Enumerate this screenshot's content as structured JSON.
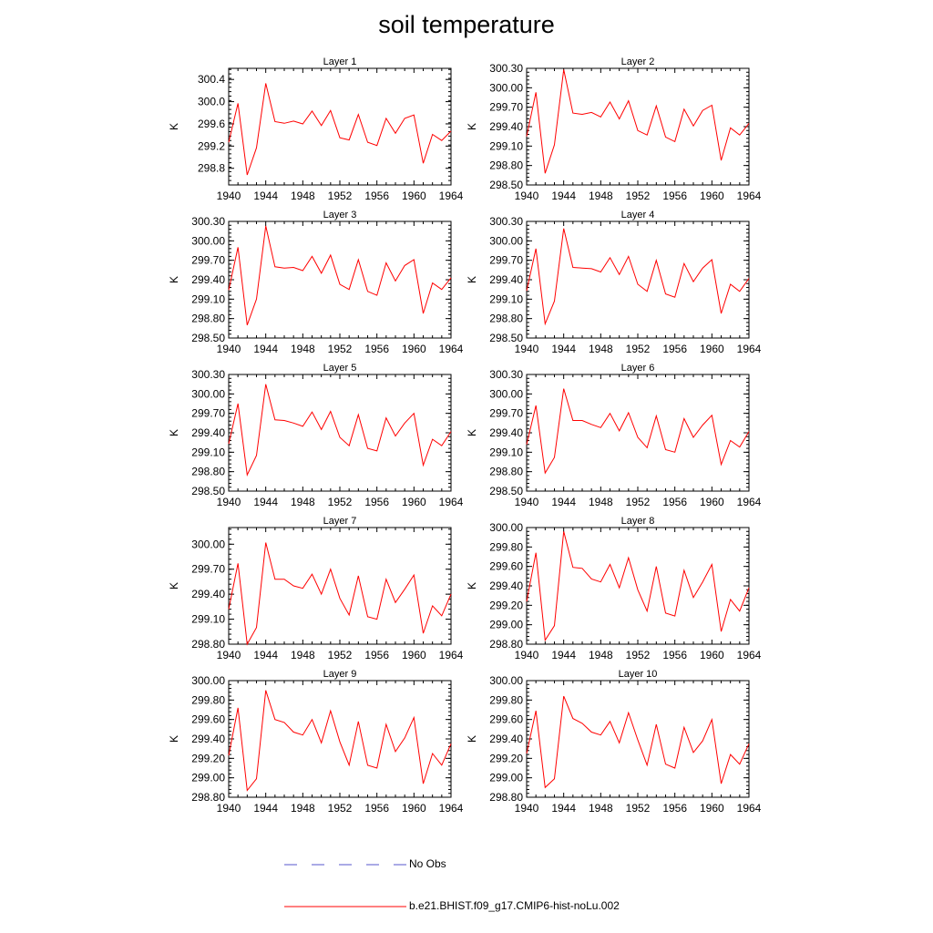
{
  "title": "soil temperature",
  "legend": {
    "obs_label": "No Obs",
    "obs_color": "#5555cc",
    "model_label": "b.e21.BHIST.f09_g17.CMIP6-hist-noLu.002",
    "model_color": "#ff0000"
  },
  "chart_data": [
    {
      "type": "line",
      "title": "Layer 1",
      "ylabel": "K",
      "xlim": [
        1940,
        1964
      ],
      "ylim": [
        298.5,
        300.6
      ],
      "xticks": [
        "1940",
        "1944",
        "1948",
        "1952",
        "1956",
        "1960",
        "1964"
      ],
      "yticks": [
        "298.8",
        "299.2",
        "299.6",
        "300.0",
        "300.4"
      ],
      "series": [
        {
          "values": [
            299.27,
            299.97,
            298.68,
            299.17,
            300.33,
            299.64,
            299.61,
            299.65,
            299.6,
            299.83,
            299.57,
            299.84,
            299.35,
            299.31,
            299.77,
            299.27,
            299.21,
            299.7,
            299.43,
            299.7,
            299.76,
            298.89,
            299.41,
            299.3,
            299.47
          ]
        }
      ]
    },
    {
      "type": "line",
      "title": "Layer 2",
      "ylabel": "K",
      "xlim": [
        1940,
        1964
      ],
      "ylim": [
        298.5,
        300.3
      ],
      "xticks": [
        "1940",
        "1944",
        "1948",
        "1952",
        "1956",
        "1960",
        "1964"
      ],
      "yticks": [
        "298.50",
        "298.80",
        "299.10",
        "299.40",
        "299.70",
        "300.00",
        "300.30"
      ],
      "series": [
        {
          "values": [
            299.25,
            299.93,
            298.68,
            299.12,
            300.28,
            299.61,
            299.59,
            299.62,
            299.55,
            299.78,
            299.52,
            299.8,
            299.34,
            299.27,
            299.72,
            299.24,
            299.17,
            299.67,
            299.41,
            299.65,
            299.73,
            298.88,
            299.38,
            299.27,
            299.45
          ]
        }
      ]
    },
    {
      "type": "line",
      "title": "Layer 3",
      "ylabel": "K",
      "xlim": [
        1940,
        1964
      ],
      "ylim": [
        298.5,
        300.3
      ],
      "xticks": [
        "1940",
        "1944",
        "1948",
        "1952",
        "1956",
        "1960",
        "1964"
      ],
      "yticks": [
        "298.50",
        "298.80",
        "299.10",
        "299.40",
        "299.70",
        "300.00",
        "300.30"
      ],
      "series": [
        {
          "values": [
            299.24,
            299.9,
            298.7,
            299.1,
            300.23,
            299.6,
            299.58,
            299.59,
            299.54,
            299.76,
            299.5,
            299.78,
            299.33,
            299.25,
            299.71,
            299.22,
            299.16,
            299.66,
            299.38,
            299.62,
            299.71,
            298.88,
            299.35,
            299.25,
            299.43
          ]
        }
      ]
    },
    {
      "type": "line",
      "title": "Layer 4",
      "ylabel": "K",
      "xlim": [
        1940,
        1964
      ],
      "ylim": [
        298.5,
        300.3
      ],
      "xticks": [
        "1940",
        "1944",
        "1948",
        "1952",
        "1956",
        "1960",
        "1964"
      ],
      "yticks": [
        "298.50",
        "298.80",
        "299.10",
        "299.40",
        "299.70",
        "300.00",
        "300.30"
      ],
      "series": [
        {
          "values": [
            299.23,
            299.88,
            298.72,
            299.07,
            300.19,
            299.59,
            299.58,
            299.57,
            299.52,
            299.74,
            299.48,
            299.76,
            299.33,
            299.22,
            299.7,
            299.18,
            299.13,
            299.65,
            299.37,
            299.58,
            299.71,
            298.88,
            299.33,
            299.22,
            299.42
          ]
        }
      ]
    },
    {
      "type": "line",
      "title": "Layer 5",
      "ylabel": "K",
      "xlim": [
        1940,
        1964
      ],
      "ylim": [
        298.5,
        300.3
      ],
      "xticks": [
        "1940",
        "1944",
        "1948",
        "1952",
        "1956",
        "1960",
        "1964"
      ],
      "yticks": [
        "298.50",
        "298.80",
        "299.10",
        "299.40",
        "299.70",
        "300.00",
        "300.30"
      ],
      "series": [
        {
          "values": [
            299.23,
            299.85,
            298.75,
            299.05,
            300.15,
            299.6,
            299.59,
            299.55,
            299.5,
            299.72,
            299.45,
            299.73,
            299.33,
            299.2,
            299.68,
            299.16,
            299.12,
            299.63,
            299.35,
            299.55,
            299.7,
            298.9,
            299.3,
            299.2,
            299.42
          ]
        }
      ]
    },
    {
      "type": "line",
      "title": "Layer 6",
      "ylabel": "K",
      "xlim": [
        1940,
        1964
      ],
      "ylim": [
        298.5,
        300.3
      ],
      "xticks": [
        "1940",
        "1944",
        "1948",
        "1952",
        "1956",
        "1960",
        "1964"
      ],
      "yticks": [
        "298.50",
        "298.80",
        "299.10",
        "299.40",
        "299.70",
        "300.00",
        "300.30"
      ],
      "series": [
        {
          "values": [
            299.22,
            299.82,
            298.78,
            299.02,
            300.08,
            299.59,
            299.59,
            299.53,
            299.48,
            299.7,
            299.43,
            299.71,
            299.33,
            299.17,
            299.66,
            299.14,
            299.1,
            299.62,
            299.33,
            299.52,
            299.67,
            298.91,
            299.28,
            299.18,
            299.42
          ]
        }
      ]
    },
    {
      "type": "line",
      "title": "Layer 7",
      "ylabel": "K",
      "xlim": [
        1940,
        1964
      ],
      "ylim": [
        298.8,
        300.2
      ],
      "xticks": [
        "1940",
        "1944",
        "1948",
        "1952",
        "1956",
        "1960",
        "1964"
      ],
      "yticks": [
        "298.80",
        "299.10",
        "299.40",
        "299.70",
        "300.00"
      ],
      "series": [
        {
          "values": [
            299.22,
            299.77,
            298.8,
            299.0,
            300.02,
            299.58,
            299.58,
            299.5,
            299.47,
            299.64,
            299.4,
            299.7,
            299.35,
            299.15,
            299.62,
            299.13,
            299.1,
            299.58,
            299.3,
            299.46,
            299.63,
            298.93,
            299.26,
            299.14,
            299.4
          ]
        }
      ]
    },
    {
      "type": "line",
      "title": "Layer 8",
      "ylabel": "K",
      "xlim": [
        1940,
        1964
      ],
      "ylim": [
        298.8,
        300.0
      ],
      "xticks": [
        "1940",
        "1944",
        "1948",
        "1952",
        "1956",
        "1960",
        "1964"
      ],
      "yticks": [
        "298.80",
        "299.00",
        "299.20",
        "299.40",
        "299.60",
        "299.80",
        "300.00"
      ],
      "series": [
        {
          "values": [
            299.24,
            299.74,
            298.84,
            298.99,
            299.96,
            299.59,
            299.58,
            299.47,
            299.44,
            299.62,
            299.38,
            299.69,
            299.36,
            299.14,
            299.6,
            299.12,
            299.09,
            299.56,
            299.28,
            299.44,
            299.62,
            298.93,
            299.26,
            299.14,
            299.38
          ]
        }
      ]
    },
    {
      "type": "line",
      "title": "Layer 9",
      "ylabel": "K",
      "xlim": [
        1940,
        1964
      ],
      "ylim": [
        298.8,
        300.0
      ],
      "xticks": [
        "1940",
        "1944",
        "1948",
        "1952",
        "1956",
        "1960",
        "1964"
      ],
      "yticks": [
        "298.80",
        "299.00",
        "299.20",
        "299.40",
        "299.60",
        "299.80",
        "300.00"
      ],
      "series": [
        {
          "values": [
            299.23,
            299.72,
            298.87,
            298.99,
            299.9,
            299.6,
            299.57,
            299.47,
            299.44,
            299.6,
            299.36,
            299.69,
            299.37,
            299.13,
            299.58,
            299.13,
            299.1,
            299.55,
            299.27,
            299.41,
            299.62,
            298.94,
            299.25,
            299.13,
            299.35
          ]
        }
      ]
    },
    {
      "type": "line",
      "title": "Layer 10",
      "ylabel": "K",
      "xlim": [
        1940,
        1964
      ],
      "ylim": [
        298.8,
        300.0
      ],
      "xticks": [
        "1940",
        "1944",
        "1948",
        "1952",
        "1956",
        "1960",
        "1964"
      ],
      "yticks": [
        "298.80",
        "299.00",
        "299.20",
        "299.40",
        "299.60",
        "299.80",
        "300.00"
      ],
      "series": [
        {
          "values": [
            299.25,
            299.69,
            298.9,
            298.99,
            299.84,
            299.61,
            299.56,
            299.47,
            299.44,
            299.58,
            299.36,
            299.67,
            299.39,
            299.13,
            299.55,
            299.14,
            299.1,
            299.52,
            299.26,
            299.38,
            299.6,
            298.94,
            299.24,
            299.14,
            299.35
          ]
        }
      ]
    }
  ]
}
